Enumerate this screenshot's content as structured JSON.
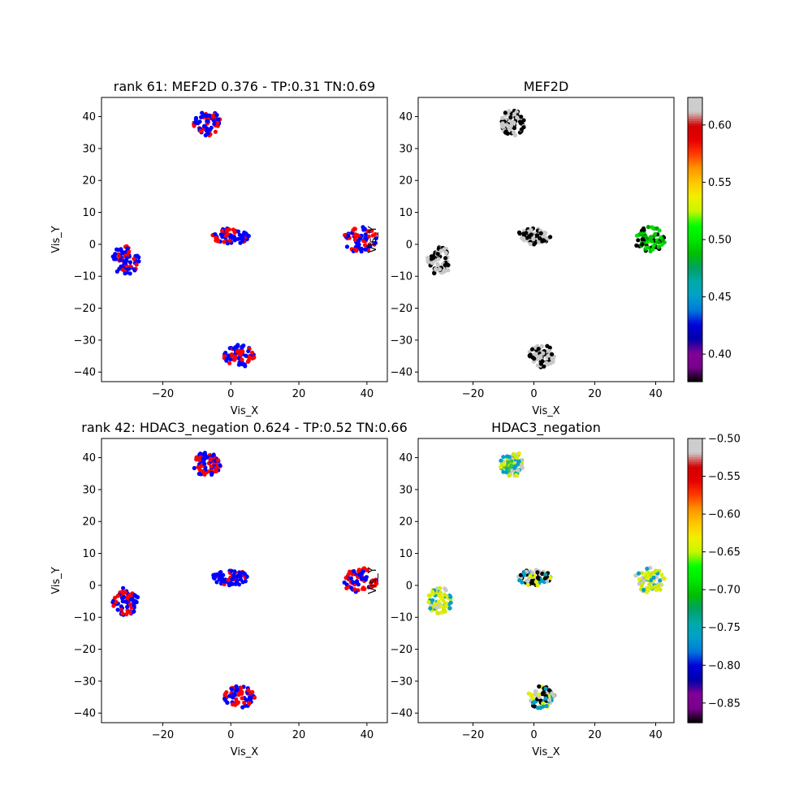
{
  "chart_data": [
    {
      "type": "scatter",
      "title": "rank 61: MEF2D 0.376 - TP:0.31 TN:0.69",
      "xlabel": "Vis_X",
      "ylabel": "Vis_Y",
      "xlim": [
        -38,
        46
      ],
      "ylim": [
        -43,
        46
      ],
      "xticks": [
        -20,
        0,
        20,
        40
      ],
      "yticks": [
        -40,
        -30,
        -20,
        -10,
        0,
        10,
        20,
        30,
        40
      ],
      "coloring": "binary",
      "colors": {
        "class_a": "#0000ff",
        "class_b": "#ff0000"
      },
      "red_fraction": [
        0.38,
        0.35,
        0.4,
        0.45,
        0.42
      ],
      "clusters": [
        {
          "center": [
            -7,
            38
          ],
          "radius": [
            4,
            4
          ]
        },
        {
          "center": [
            -31,
            -5
          ],
          "radius": [
            4,
            4.5
          ]
        },
        {
          "center": [
            0,
            2.5
          ],
          "radius": [
            5.5,
            2.5
          ]
        },
        {
          "center": [
            38,
            1.5
          ],
          "radius": [
            5,
            4
          ]
        },
        {
          "center": [
            2.5,
            -35
          ],
          "radius": [
            4.5,
            3.5
          ]
        }
      ]
    },
    {
      "type": "scatter",
      "title": "MEF2D",
      "xlabel": "Vis_X",
      "ylabel": "Vis_Y",
      "xlim": [
        -38,
        46
      ],
      "ylim": [
        -43,
        46
      ],
      "xticks": [
        -20,
        0,
        20,
        40
      ],
      "yticks": [
        -40,
        -30,
        -20,
        -10,
        0,
        10,
        20,
        30,
        40
      ],
      "coloring": "continuous",
      "colorbar": {
        "cmap": "nipy_spectral",
        "range": [
          0.376,
          0.624
        ],
        "ticks": [
          0.4,
          0.45,
          0.5,
          0.55,
          0.6
        ],
        "tick_labels": [
          "0.40",
          "0.45",
          "0.50",
          "0.55",
          "0.60"
        ]
      },
      "cluster_colors": [
        {
          "center": [
            -7,
            38
          ],
          "colors": [
            "#000000",
            "#c8c8c8"
          ]
        },
        {
          "center": [
            -31,
            -5
          ],
          "colors": [
            "#000000",
            "#c8c8c8"
          ]
        },
        {
          "center": [
            0,
            2.5
          ],
          "colors": [
            "#000000",
            "#c8c8c8"
          ]
        },
        {
          "center": [
            38,
            1.5
          ],
          "colors": [
            "#000000",
            "#00c800",
            "#00e000",
            "#00a000"
          ]
        },
        {
          "center": [
            2.5,
            -35
          ],
          "colors": [
            "#000000",
            "#c8c8c8"
          ]
        }
      ]
    },
    {
      "type": "scatter",
      "title": "rank 42: HDAC3_negation 0.624 - TP:0.52 TN:0.66",
      "xlabel": "Vis_X",
      "ylabel": "Vis_Y",
      "xlim": [
        -38,
        46
      ],
      "ylim": [
        -43,
        46
      ],
      "xticks": [
        -20,
        0,
        20,
        40
      ],
      "yticks": [
        -40,
        -30,
        -20,
        -10,
        0,
        10,
        20,
        30,
        40
      ],
      "coloring": "binary",
      "colors": {
        "class_a": "#0000ff",
        "class_b": "#ff0000"
      },
      "red_fraction": [
        0.3,
        0.45,
        0.3,
        0.55,
        0.4
      ],
      "clusters": [
        {
          "center": [
            -7,
            38
          ],
          "radius": [
            4,
            4
          ]
        },
        {
          "center": [
            -31,
            -5
          ],
          "radius": [
            4,
            4.5
          ]
        },
        {
          "center": [
            0,
            2.5
          ],
          "radius": [
            5.5,
            2.5
          ]
        },
        {
          "center": [
            38,
            1.5
          ],
          "radius": [
            5,
            4
          ]
        },
        {
          "center": [
            2.5,
            -35
          ],
          "radius": [
            4.5,
            3.5
          ]
        }
      ]
    },
    {
      "type": "scatter",
      "title": "HDAC3_negation",
      "xlabel": "Vis_X",
      "ylabel": "Vis_Y",
      "xlim": [
        -38,
        46
      ],
      "ylim": [
        -43,
        46
      ],
      "xticks": [
        -20,
        0,
        20,
        40
      ],
      "yticks": [
        -40,
        -30,
        -20,
        -10,
        0,
        10,
        20,
        30,
        40
      ],
      "coloring": "continuous",
      "colorbar": {
        "cmap": "nipy_spectral",
        "range": [
          -0.876,
          -0.5
        ],
        "ticks": [
          -0.85,
          -0.8,
          -0.75,
          -0.7,
          -0.65,
          -0.6,
          -0.55,
          -0.5
        ],
        "tick_labels": [
          "−0.85",
          "−0.80",
          "−0.75",
          "−0.70",
          "−0.65",
          "−0.60",
          "−0.55",
          "−0.50"
        ]
      },
      "cluster_colors": [
        {
          "center": [
            -7,
            38
          ],
          "colors": [
            "#e0f000",
            "#d0e800",
            "#c8c8c8",
            "#00a0c8",
            "#40c040"
          ]
        },
        {
          "center": [
            -31,
            -5
          ],
          "colors": [
            "#e0f000",
            "#c8c8c8",
            "#00a0c8",
            "#d8e800"
          ]
        },
        {
          "center": [
            0,
            2.5
          ],
          "colors": [
            "#e0f000",
            "#c8c8c8",
            "#000000",
            "#00a0c8"
          ]
        },
        {
          "center": [
            38,
            1.5
          ],
          "colors": [
            "#c8c8c8",
            "#e0f000",
            "#d0e800",
            "#00a0c8"
          ]
        },
        {
          "center": [
            2.5,
            -35
          ],
          "colors": [
            "#e0f000",
            "#00a0c8",
            "#c8c8c8",
            "#000000"
          ]
        }
      ]
    }
  ]
}
